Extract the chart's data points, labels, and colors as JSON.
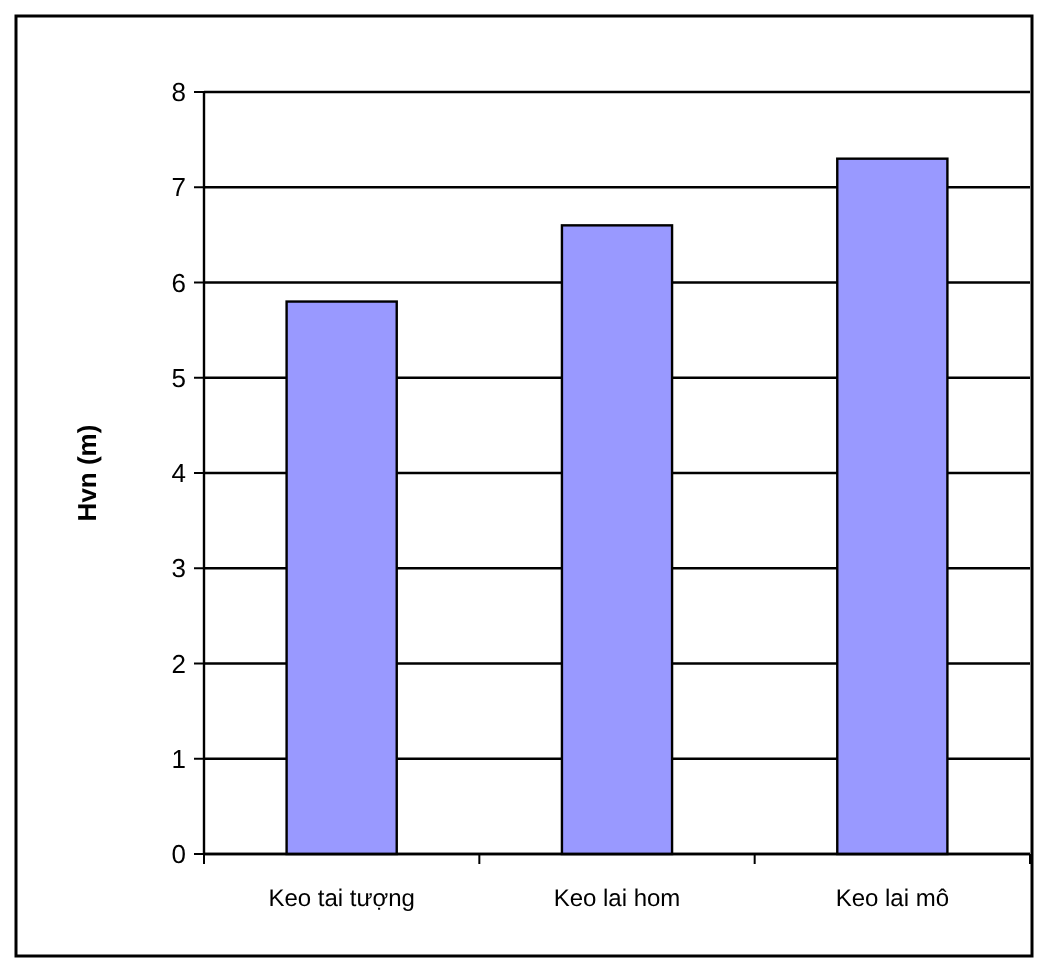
{
  "chart_data": {
    "type": "bar",
    "ylabel": "Hvn (m)",
    "categories": [
      "Keo tai tượng",
      "Keo lai hom",
      "Keo lai mô"
    ],
    "values": [
      5.8,
      6.6,
      7.3
    ],
    "color": "#9999ff",
    "ylim": [
      0,
      8
    ],
    "yticks": [
      0,
      1,
      2,
      3,
      4,
      5,
      6,
      7,
      8
    ],
    "grid": "y"
  }
}
